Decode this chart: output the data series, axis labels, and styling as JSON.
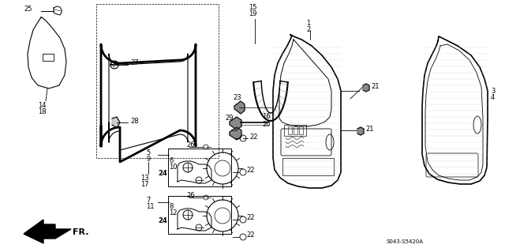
{
  "bg_color": "#ffffff",
  "fig_width": 6.4,
  "fig_height": 3.19,
  "dpi": 100,
  "line_color": "#000000",
  "text_color": "#000000",
  "gray_color": "#555555"
}
